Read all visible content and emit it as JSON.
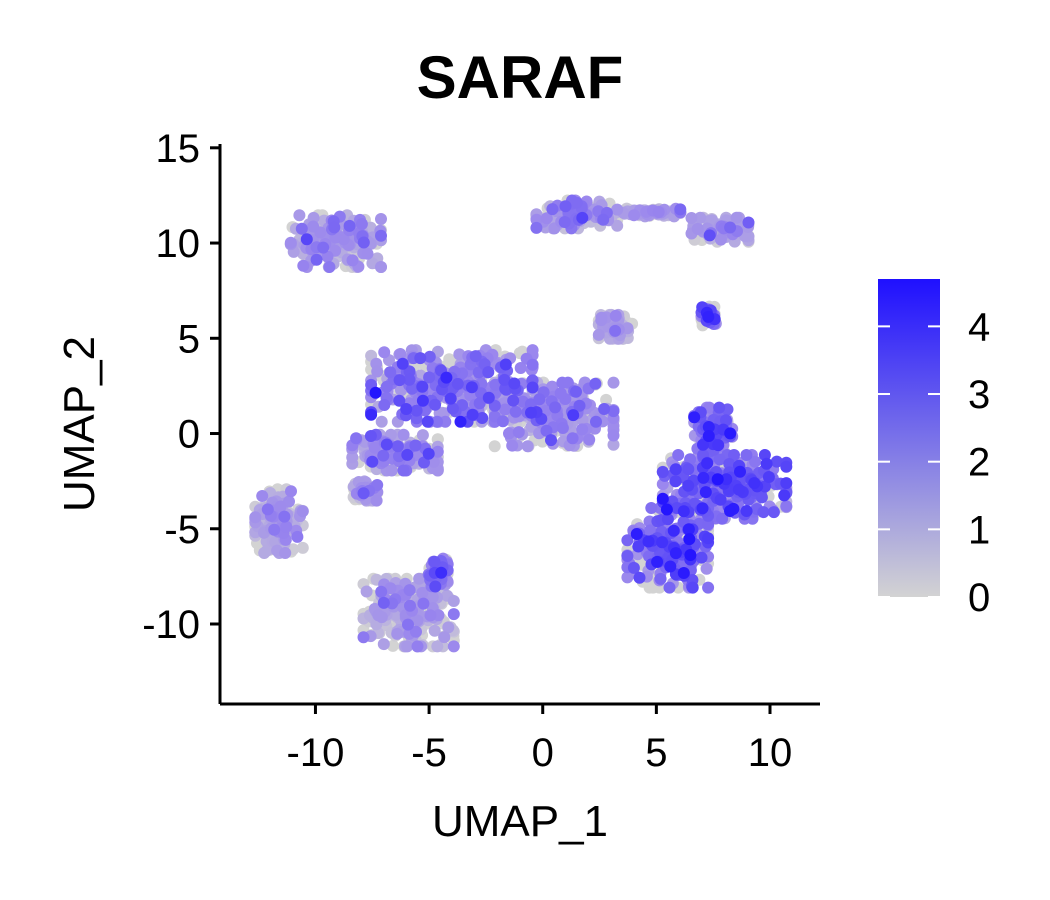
{
  "chart_data": {
    "type": "scatter",
    "title": "SARAF",
    "xlabel": "UMAP_1",
    "ylabel": "UMAP_2",
    "xlim": [
      -14.2,
      12.2
    ],
    "ylim": [
      -14.2,
      15.2
    ],
    "x_ticks": [
      -10,
      -5,
      0,
      5,
      10
    ],
    "y_ticks": [
      -10,
      -5,
      0,
      5,
      10,
      15
    ],
    "grid": false,
    "legend": "right",
    "colorbar": {
      "ticks": [
        0,
        1,
        2,
        3,
        4
      ],
      "range": [
        0,
        4.7
      ],
      "low_color": "#d3d3d3",
      "high_color": "#1f10ff"
    },
    "clusters": [
      {
        "x": -9.1,
        "y": 10.1,
        "spread_x": 1.9,
        "spread_y": 1.3,
        "mean_expr": 1.6
      },
      {
        "x": 1.5,
        "y": 11.5,
        "spread_x": 1.7,
        "spread_y": 0.7,
        "mean_expr": 1.8
      },
      {
        "x": 7.8,
        "y": 10.7,
        "spread_x": 1.2,
        "spread_y": 0.6,
        "mean_expr": 1.5
      },
      {
        "x": 4.8,
        "y": 11.6,
        "spread_x": 1.2,
        "spread_y": 0.2,
        "mean_expr": 1.3
      },
      {
        "x": 3.2,
        "y": 5.6,
        "spread_x": 0.7,
        "spread_y": 0.6,
        "mean_expr": 1.2
      },
      {
        "x": 7.3,
        "y": 6.2,
        "spread_x": 0.3,
        "spread_y": 0.5,
        "mean_expr": 2.5
      },
      {
        "x": -4.0,
        "y": 2.5,
        "spread_x": 3.4,
        "spread_y": 1.8,
        "mean_expr": 2.3
      },
      {
        "x": 0.5,
        "y": 1.0,
        "spread_x": 2.5,
        "spread_y": 1.6,
        "mean_expr": 1.9
      },
      {
        "x": -6.5,
        "y": -1.0,
        "spread_x": 1.8,
        "spread_y": 0.9,
        "mean_expr": 2.0
      },
      {
        "x": -7.8,
        "y": -3.0,
        "spread_x": 0.5,
        "spread_y": 0.5,
        "mean_expr": 1.8
      },
      {
        "x": 8.0,
        "y": -2.8,
        "spread_x": 2.6,
        "spread_y": 1.6,
        "mean_expr": 3.0
      },
      {
        "x": 5.5,
        "y": -6.0,
        "spread_x": 1.7,
        "spread_y": 2.0,
        "mean_expr": 2.8
      },
      {
        "x": 7.5,
        "y": 0.0,
        "spread_x": 0.8,
        "spread_y": 1.3,
        "mean_expr": 2.7
      },
      {
        "x": -11.6,
        "y": -4.6,
        "spread_x": 1.0,
        "spread_y": 1.6,
        "mean_expr": 1.4
      },
      {
        "x": -5.9,
        "y": -9.4,
        "spread_x": 1.9,
        "spread_y": 1.7,
        "mean_expr": 1.3
      },
      {
        "x": -4.6,
        "y": -7.3,
        "spread_x": 0.4,
        "spread_y": 0.7,
        "mean_expr": 2.2
      }
    ]
  }
}
